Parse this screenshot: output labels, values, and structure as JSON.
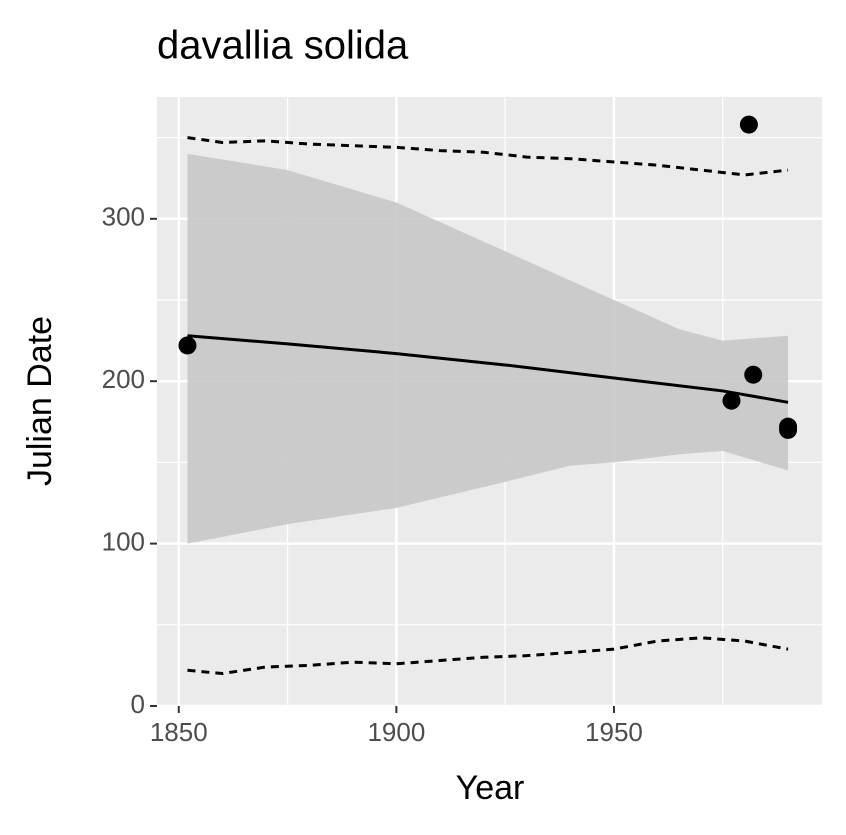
{
  "chart_data": {
    "type": "scatter",
    "title": "davallia solida",
    "x_label": "Year",
    "y_label": "Julian Date",
    "xlim": [
      1845,
      1997.8
    ],
    "ylim": [
      0,
      375
    ],
    "xticks": [
      1850,
      1900,
      1950
    ],
    "yticks": [
      0,
      100,
      200,
      300
    ],
    "x_minor_ticks": [
      1875,
      1925,
      1975
    ],
    "y_minor_ticks": [
      50,
      150,
      250,
      350
    ],
    "grid": true,
    "points": {
      "color": "#000000",
      "x": [
        1852,
        1977,
        1982,
        1981,
        1990,
        1990
      ],
      "y": [
        222,
        188,
        204,
        358,
        172,
        170
      ]
    },
    "fit": {
      "color": "#000000",
      "x": [
        1852,
        1875,
        1900,
        1925,
        1950,
        1975,
        1990
      ],
      "y": [
        228,
        223,
        217,
        210,
        202,
        194,
        187
      ]
    },
    "ribbon": {
      "color": "#c8c8c8",
      "x": [
        1852,
        1875,
        1900,
        1925,
        1940,
        1950,
        1965,
        1975,
        1990
      ],
      "upper": [
        340,
        330,
        310,
        280,
        262,
        250,
        232,
        225,
        228
      ],
      "lower": [
        100,
        112,
        122,
        138,
        148,
        150,
        155,
        157,
        145
      ]
    },
    "upper_bound": {
      "color": "#000000",
      "x": [
        1852,
        1860,
        1870,
        1880,
        1890,
        1900,
        1910,
        1920,
        1930,
        1940,
        1950,
        1960,
        1970,
        1980,
        1990
      ],
      "y": [
        350,
        347,
        348,
        346,
        345,
        344,
        342,
        341,
        338,
        337,
        335,
        333,
        330,
        327,
        330
      ]
    },
    "lower_bound": {
      "color": "#000000",
      "x": [
        1852,
        1860,
        1870,
        1880,
        1890,
        1900,
        1910,
        1920,
        1930,
        1940,
        1950,
        1960,
        1970,
        1980,
        1990
      ],
      "y": [
        22,
        20,
        24,
        25,
        27,
        26,
        28,
        30,
        31,
        33,
        35,
        40,
        42,
        40,
        35
      ]
    }
  }
}
